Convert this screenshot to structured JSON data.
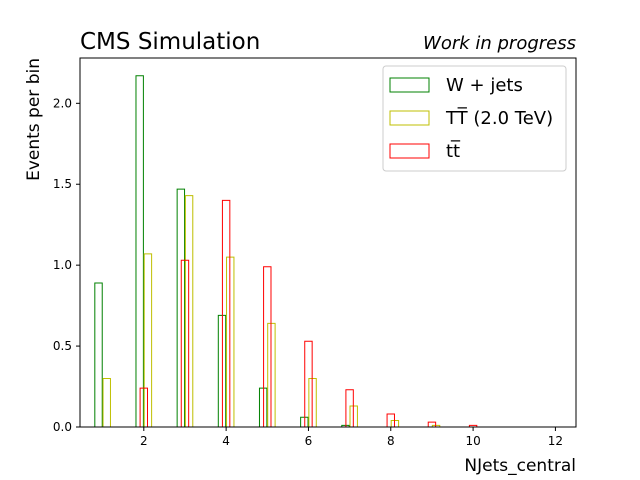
{
  "chart_data": {
    "type": "bar",
    "histtype": "step",
    "title_left": "CMS Simulation",
    "title_right": "Work in progress",
    "xlabel": "NJets_central",
    "ylabel": "Events per bin",
    "xlim": [
      0.45,
      12.5
    ],
    "ylim": [
      0,
      2.28
    ],
    "xticks": [
      2,
      4,
      6,
      8,
      10,
      12
    ],
    "yticks": [
      0.0,
      0.5,
      1.0,
      1.5,
      2.0
    ],
    "ytick_labels": [
      "0.0",
      "0.5",
      "1.0",
      "1.5",
      "2.0"
    ],
    "grid": false,
    "legend_position": "top-right",
    "x": [
      1,
      2,
      3,
      4,
      5,
      6,
      7,
      8,
      9,
      10,
      11,
      12
    ],
    "series": [
      {
        "name": "W + jets",
        "color": "#008000",
        "offset": -0.1,
        "values": [
          0.89,
          2.17,
          1.47,
          0.69,
          0.24,
          0.06,
          0.01,
          0.0,
          0.0,
          0.0,
          0.0,
          0.0
        ]
      },
      {
        "name": "TT̅ (2.0 TeV)",
        "color": "#bfbf00",
        "offset": 0.1,
        "values": [
          0.3,
          1.07,
          1.43,
          1.05,
          0.64,
          0.3,
          0.13,
          0.04,
          0.01,
          0.0,
          0.0,
          0.0
        ]
      },
      {
        "name": "tt̅",
        "color": "#ff0000",
        "offset": 0.0,
        "values": [
          0.0,
          0.24,
          1.03,
          1.4,
          0.99,
          0.53,
          0.23,
          0.08,
          0.03,
          0.01,
          0.0,
          0.0
        ]
      }
    ]
  }
}
